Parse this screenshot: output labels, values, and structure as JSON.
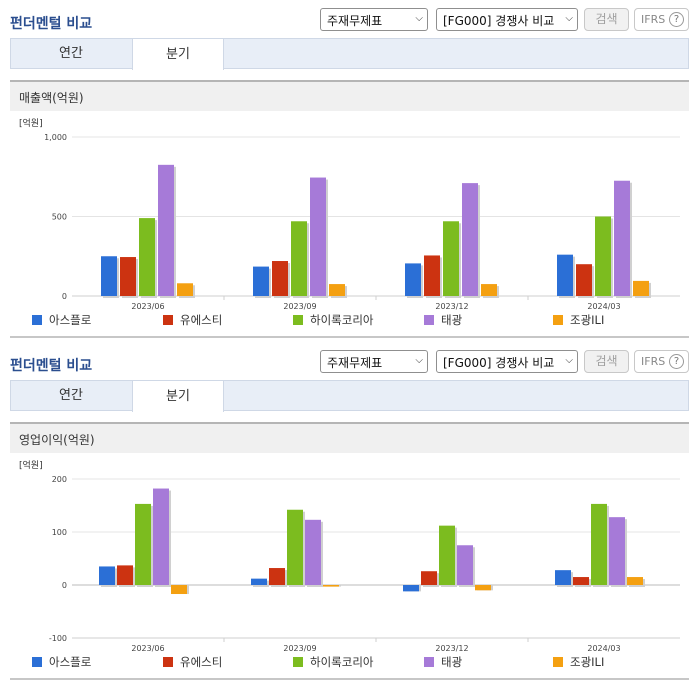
{
  "panels": [
    {
      "title": "펀더멘털 비교",
      "select1": "주재무제표",
      "select2": "[FG000] 경쟁사 비교",
      "search_label": "검색",
      "ifrs_label": "IFRS",
      "ifrs_help": "?",
      "tabs": [
        "연간",
        "분기"
      ],
      "active_tab": "분기",
      "metric": "매출액(억원)"
    },
    {
      "title": "펀더멘털 비교",
      "select1": "주재무제표",
      "select2": "[FG000] 경쟁사 비교",
      "search_label": "검색",
      "ifrs_label": "IFRS",
      "ifrs_help": "?",
      "tabs": [
        "연간",
        "분기"
      ],
      "active_tab": "분기",
      "metric": "영업이익(억원)"
    }
  ],
  "chart_data": [
    {
      "type": "bar",
      "unit_label": "[억원]",
      "categories": [
        "2023/06",
        "2023/09",
        "2023/12",
        "2024/03"
      ],
      "ylim": [
        0,
        1000
      ],
      "yticks": [
        0,
        500,
        1000
      ],
      "ytick_labels": [
        "0",
        "500",
        "1,000"
      ],
      "grid": true,
      "legend": "bottom",
      "series": [
        {
          "name": "아스플로",
          "color": "#2b6fd6",
          "values": [
            250,
            185,
            205,
            260
          ]
        },
        {
          "name": "유에스티",
          "color": "#cc3311",
          "values": [
            245,
            220,
            255,
            200
          ]
        },
        {
          "name": "하이록코리아",
          "color": "#7cbc1f",
          "values": [
            490,
            470,
            470,
            500
          ]
        },
        {
          "name": "태광",
          "color": "#a67ad8",
          "values": [
            825,
            745,
            710,
            725
          ]
        },
        {
          "name": "조광ILI",
          "color": "#f4a011",
          "values": [
            80,
            75,
            75,
            95
          ]
        }
      ]
    },
    {
      "type": "bar",
      "unit_label": "[억원]",
      "categories": [
        "2023/06",
        "2023/09",
        "2023/12",
        "2024/03"
      ],
      "ylim": [
        -100,
        200
      ],
      "yticks": [
        -100,
        0,
        100,
        200
      ],
      "ytick_labels": [
        "-100",
        "0",
        "100",
        "200"
      ],
      "grid": true,
      "legend": "bottom",
      "series": [
        {
          "name": "아스플로",
          "color": "#2b6fd6",
          "values": [
            35,
            12,
            -12,
            28
          ]
        },
        {
          "name": "유에스티",
          "color": "#cc3311",
          "values": [
            37,
            32,
            26,
            15
          ]
        },
        {
          "name": "하이록코리아",
          "color": "#7cbc1f",
          "values": [
            153,
            142,
            112,
            153
          ]
        },
        {
          "name": "태광",
          "color": "#a67ad8",
          "values": [
            182,
            123,
            75,
            128
          ]
        },
        {
          "name": "조광ILI",
          "color": "#f4a011",
          "values": [
            -17,
            -3,
            -10,
            15
          ]
        }
      ]
    }
  ]
}
